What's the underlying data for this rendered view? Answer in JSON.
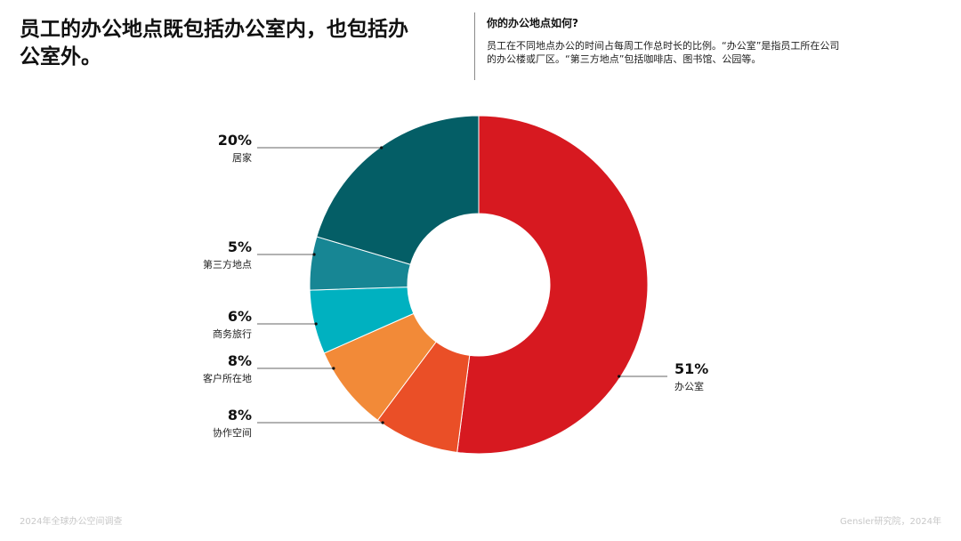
{
  "header": {
    "title": "员工的办公地点既包括办公室内，也包括办公室外。",
    "note_heading": "你的办公地点如何?",
    "note_body": "员工在不同地点办公的时间占每周工作总时长的比例。“办公室”是指员工所在公司的办公楼或厂区。“第三方地点”包括咖啡店、图书馆、公园等。"
  },
  "footer": {
    "left": "2024年全球办公空间调查",
    "right": "Gensler研究院，2024年"
  },
  "chart_data": {
    "type": "pie",
    "donut": true,
    "start": "12 o'clock, clockwise",
    "slices": [
      {
        "label": "办公室",
        "value": 51,
        "display": "51%",
        "color": "#d71920"
      },
      {
        "label": "协作空间",
        "value": 8,
        "display": "8%",
        "color": "#ea4f27"
      },
      {
        "label": "客户所在地",
        "value": 8,
        "display": "8%",
        "color": "#f28a38"
      },
      {
        "label": "商务旅行",
        "value": 6,
        "display": "6%",
        "color": "#00b1c0"
      },
      {
        "label": "第三方地点",
        "value": 5,
        "display": "5%",
        "color": "#178694"
      },
      {
        "label": "居家",
        "value": 20,
        "display": "20%",
        "color": "#045e66"
      }
    ]
  }
}
